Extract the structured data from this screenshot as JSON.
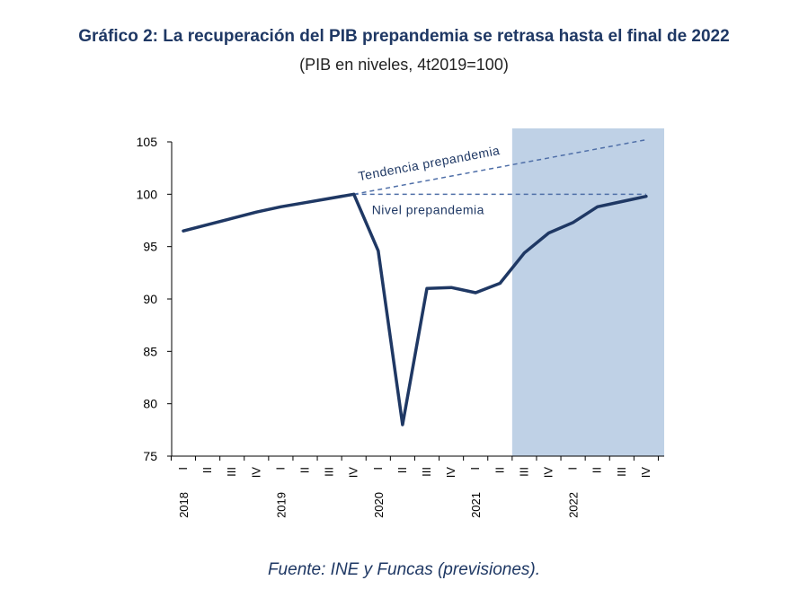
{
  "header": {
    "title": "Gráfico 2: La recuperación del PIB prepandemia se retrasa hasta el final de 2022",
    "subtitle": "(PIB en niveles, 4t2019=100)"
  },
  "footer": {
    "source": "Fuente: INE y Funcas (previsiones)."
  },
  "colors": {
    "line": "#1f3864",
    "forecast_band": "#bfd1e6",
    "dashed": "#4f6fa8"
  },
  "chart_data": {
    "type": "line",
    "title": "Gráfico 2: La recuperación del PIB prepandemia se retrasa hasta el final de 2022",
    "subtitle": "(PIB en niveles, 4t2019=100)",
    "xlabel": "",
    "ylabel": "",
    "ylim": [
      75,
      105
    ],
    "yticks": [
      75,
      80,
      85,
      90,
      95,
      100,
      105
    ],
    "quarter_labels": [
      "I",
      "II",
      "III",
      "IV",
      "I",
      "II",
      "III",
      "IV",
      "I",
      "II",
      "III",
      "IV",
      "I",
      "II",
      "III",
      "IV",
      "I",
      "II",
      "III",
      "IV"
    ],
    "year_labels": [
      "2018",
      "2019",
      "2020",
      "2021",
      "2022"
    ],
    "forecast_band": {
      "from_index": 14,
      "to_index": 19
    },
    "series": [
      {
        "name": "PIB",
        "values": [
          96.5,
          97.1,
          97.7,
          98.3,
          98.8,
          99.2,
          99.6,
          100.0,
          94.6,
          78.0,
          91.0,
          91.1,
          90.6,
          91.5,
          94.4,
          96.3,
          97.3,
          98.8,
          99.3,
          99.8
        ]
      }
    ],
    "annotations": [
      {
        "label": "Tendencia prepandemia",
        "from": [
          7,
          100.0
        ],
        "to": [
          19,
          105.2
        ]
      },
      {
        "label": "Nivel prepandemia",
        "from": [
          7,
          100.0
        ],
        "to": [
          19,
          100.0
        ]
      }
    ]
  }
}
